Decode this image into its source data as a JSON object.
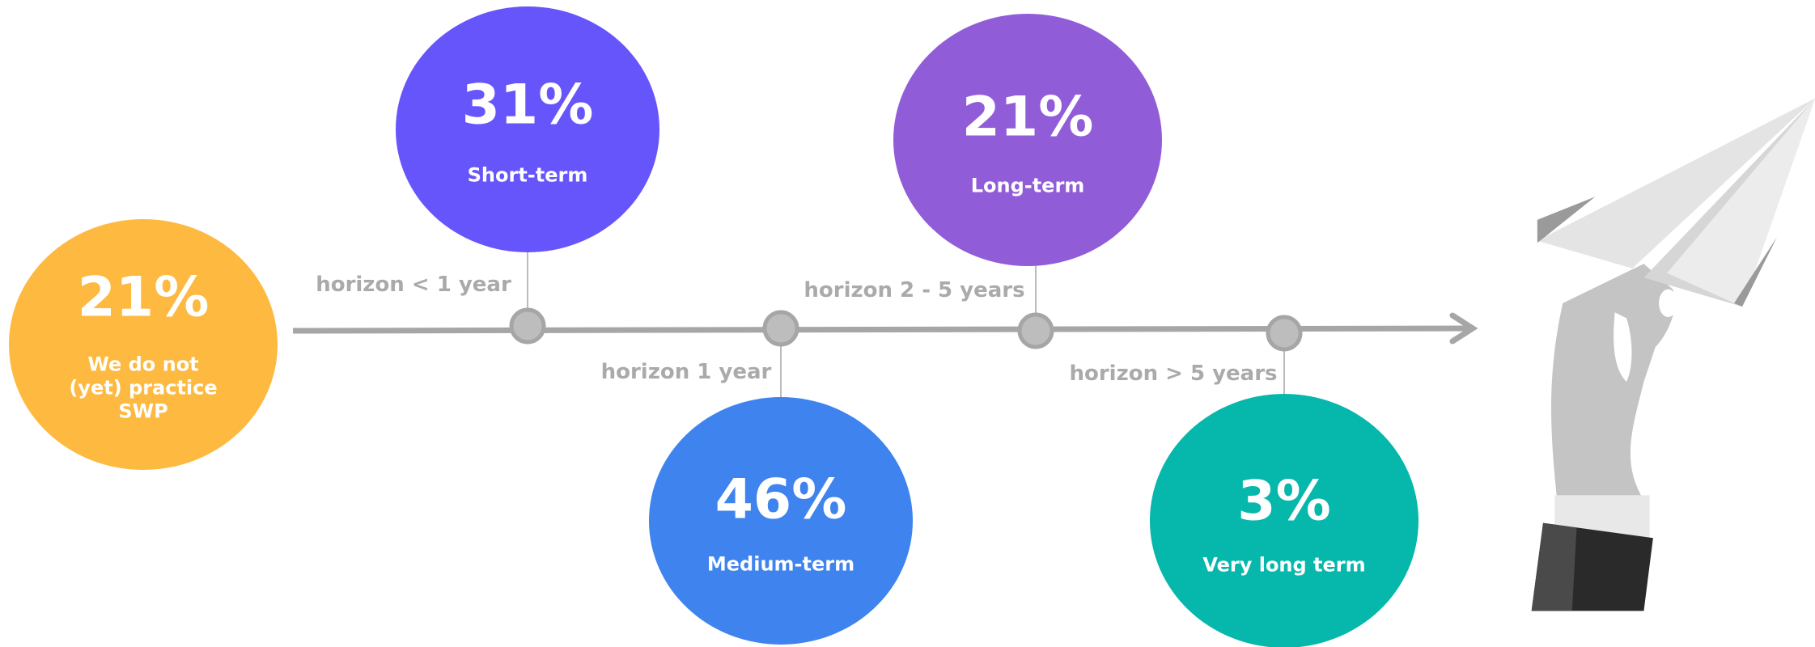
{
  "items": [
    {
      "value": "21%",
      "label": "We do not (yet) practice SWP"
    },
    {
      "value": "31%",
      "label": "Short-term",
      "horizon": "horizon < 1 year"
    },
    {
      "value": "46%",
      "label": "Medium-term",
      "horizon": "horizon 1 year"
    },
    {
      "value": "21%",
      "label": "Long-term",
      "horizon": "horizon 2 - 5 years"
    },
    {
      "value": "3%",
      "label": "Very long term",
      "horizon": "horizon > 5 years"
    }
  ]
}
